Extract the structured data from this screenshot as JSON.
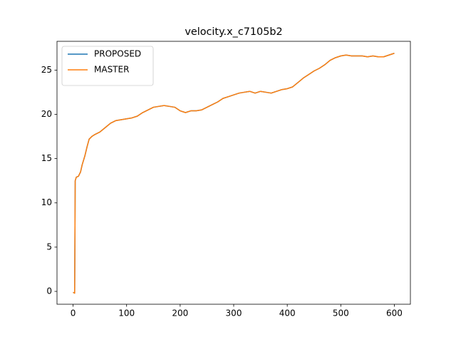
{
  "chart_data": {
    "type": "line",
    "title": "velocity.x_c7105b2",
    "x": [
      0,
      3,
      4,
      6,
      10,
      14,
      17,
      22,
      26,
      30,
      35,
      40,
      50,
      60,
      70,
      80,
      90,
      100,
      110,
      120,
      130,
      140,
      150,
      160,
      170,
      180,
      190,
      200,
      210,
      220,
      230,
      240,
      250,
      260,
      270,
      280,
      290,
      300,
      310,
      320,
      330,
      340,
      350,
      360,
      370,
      380,
      390,
      400,
      410,
      420,
      430,
      440,
      450,
      460,
      470,
      480,
      490,
      500,
      510,
      520,
      530,
      540,
      550,
      560,
      570,
      580,
      590,
      600
    ],
    "series": [
      {
        "name": "PROPOSED",
        "color": "#1f77b4",
        "values": [
          -0.1,
          -0.2,
          12.5,
          12.9,
          13.0,
          13.5,
          14.3,
          15.3,
          16.3,
          17.2,
          17.5,
          17.7,
          18.0,
          18.5,
          19.0,
          19.3,
          19.4,
          19.5,
          19.6,
          19.8,
          20.2,
          20.5,
          20.8,
          20.9,
          21.0,
          20.9,
          20.8,
          20.4,
          20.2,
          20.4,
          20.4,
          20.5,
          20.8,
          21.1,
          21.4,
          21.8,
          22.0,
          22.2,
          22.4,
          22.5,
          22.6,
          22.4,
          22.6,
          22.5,
          22.4,
          22.6,
          22.8,
          22.9,
          23.1,
          23.6,
          24.1,
          24.5,
          24.9,
          25.2,
          25.6,
          26.1,
          26.4,
          26.6,
          26.7,
          26.6,
          26.6,
          26.6,
          26.5,
          26.6,
          26.5,
          26.5,
          26.7,
          26.9
        ]
      },
      {
        "name": "MASTER",
        "color": "#ff7f0e",
        "values": [
          -0.1,
          -0.2,
          12.5,
          12.9,
          13.0,
          13.5,
          14.3,
          15.3,
          16.3,
          17.2,
          17.5,
          17.7,
          18.0,
          18.5,
          19.0,
          19.3,
          19.4,
          19.5,
          19.6,
          19.8,
          20.2,
          20.5,
          20.8,
          20.9,
          21.0,
          20.9,
          20.8,
          20.4,
          20.2,
          20.4,
          20.4,
          20.5,
          20.8,
          21.1,
          21.4,
          21.8,
          22.0,
          22.2,
          22.4,
          22.5,
          22.6,
          22.4,
          22.6,
          22.5,
          22.4,
          22.6,
          22.8,
          22.9,
          23.1,
          23.6,
          24.1,
          24.5,
          24.9,
          25.2,
          25.6,
          26.1,
          26.4,
          26.6,
          26.7,
          26.6,
          26.6,
          26.6,
          26.5,
          26.6,
          26.5,
          26.5,
          26.7,
          26.9
        ]
      }
    ],
    "xlim": [
      -30,
      630
    ],
    "ylim": [
      -1.45,
      28.25
    ],
    "xticks": [
      0,
      100,
      200,
      300,
      400,
      500,
      600
    ],
    "yticks": [
      0,
      5,
      10,
      15,
      20,
      25
    ],
    "legend": "upper left"
  }
}
